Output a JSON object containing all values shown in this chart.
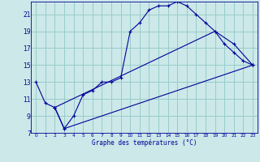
{
  "xlabel": "Graphe des températures (°C)",
  "bg_color": "#cce8e8",
  "grid_color": "#99cccc",
  "line_color": "#000099",
  "xlim": [
    -0.5,
    23.5
  ],
  "ylim": [
    7,
    22.5
  ],
  "yticks": [
    7,
    9,
    11,
    13,
    15,
    17,
    19,
    21
  ],
  "xticks": [
    0,
    1,
    2,
    3,
    4,
    5,
    6,
    7,
    8,
    9,
    10,
    11,
    12,
    13,
    14,
    15,
    16,
    17,
    18,
    19,
    20,
    21,
    22,
    23
  ],
  "line1_x": [
    0,
    1,
    2,
    3,
    4,
    5,
    6,
    7,
    8,
    9,
    10,
    11,
    12,
    13,
    14,
    15,
    16,
    17,
    18,
    19,
    20,
    21,
    22,
    23
  ],
  "line1_y": [
    13,
    10.5,
    10,
    7.5,
    9,
    11.5,
    12,
    13,
    13,
    13.5,
    19,
    20,
    21.5,
    22,
    22,
    22.5,
    22,
    21,
    20,
    19,
    17.5,
    16.5,
    15.5,
    15
  ],
  "line2_x": [
    2,
    3,
    23
  ],
  "line2_y": [
    10,
    7.5,
    15
  ],
  "line3_x": [
    2,
    19,
    21,
    23
  ],
  "line3_y": [
    10,
    19,
    17.5,
    15
  ]
}
